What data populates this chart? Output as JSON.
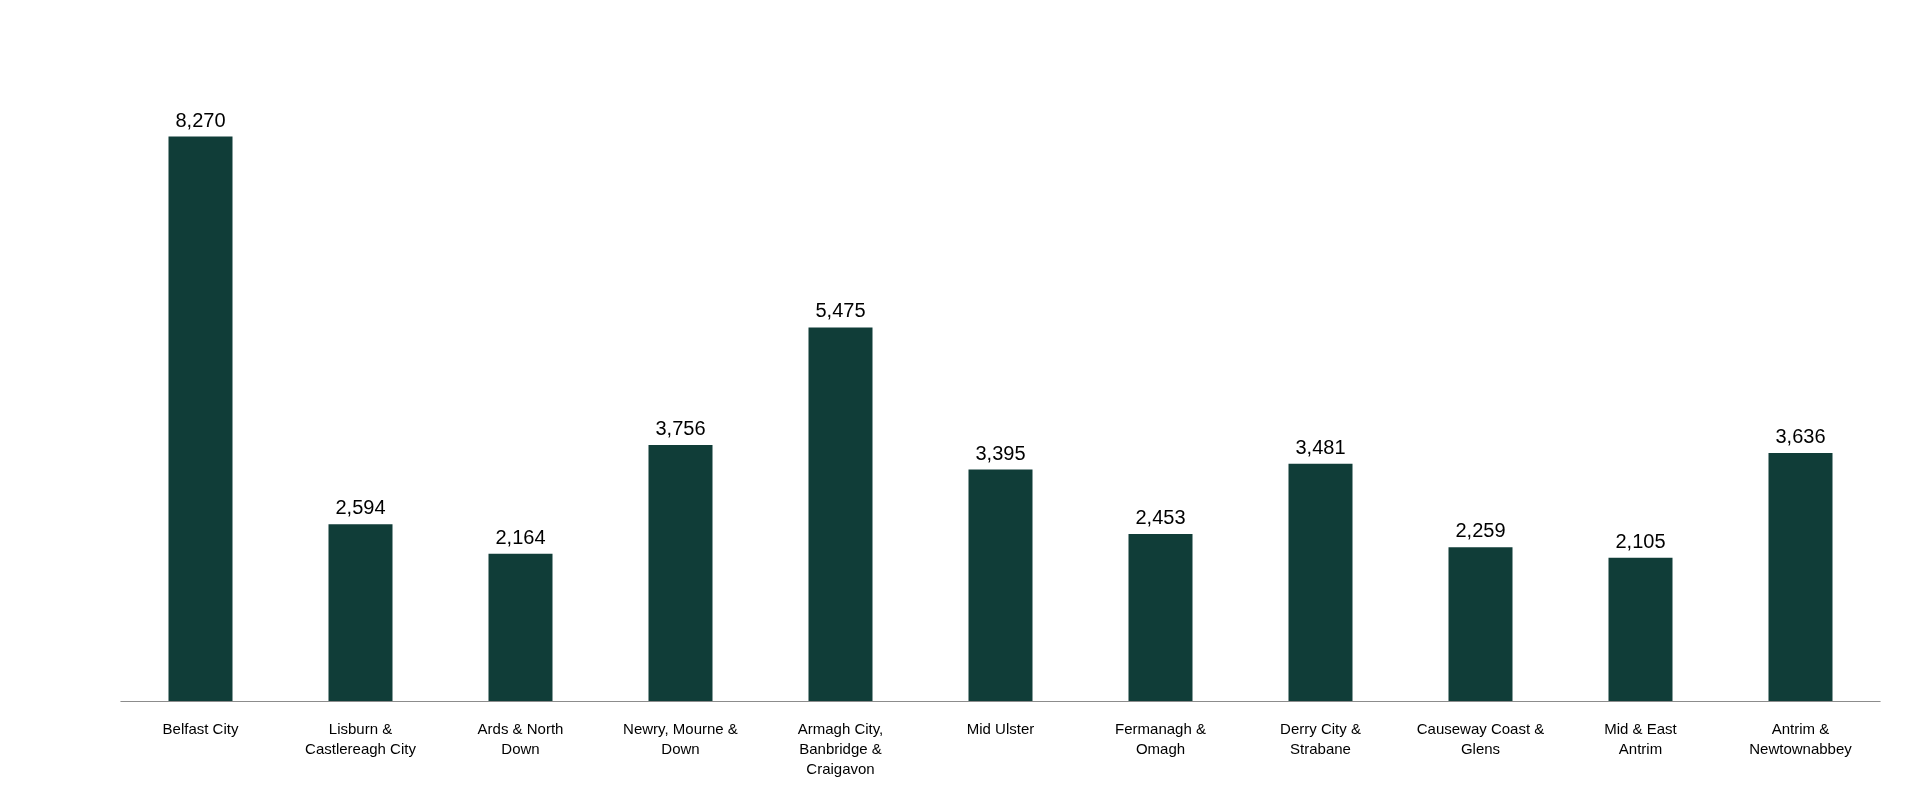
{
  "chart_data": {
    "type": "bar",
    "categories": [
      "Belfast City",
      "Lisburn & Castlereagh City",
      "Ards & North Down",
      "Newry, Mourne & Down",
      "Armagh City, Banbridge & Craigavon",
      "Mid Ulster",
      "Fermanagh & Omagh",
      "Derry City & Strabane",
      "Causeway Coast & Glens",
      "Mid & East Antrim",
      "Antrim & Newtownabbey"
    ],
    "values": [
      8270,
      2594,
      2164,
      3756,
      5475,
      3395,
      2453,
      3481,
      2259,
      2105,
      3636
    ],
    "color": "#103d38",
    "value_labels": [
      "8,270",
      "2,594",
      "2,164",
      "3,756",
      "5,475",
      "3,395",
      "2,453",
      "3,481",
      "2,259",
      "2,105",
      "3,636"
    ]
  }
}
